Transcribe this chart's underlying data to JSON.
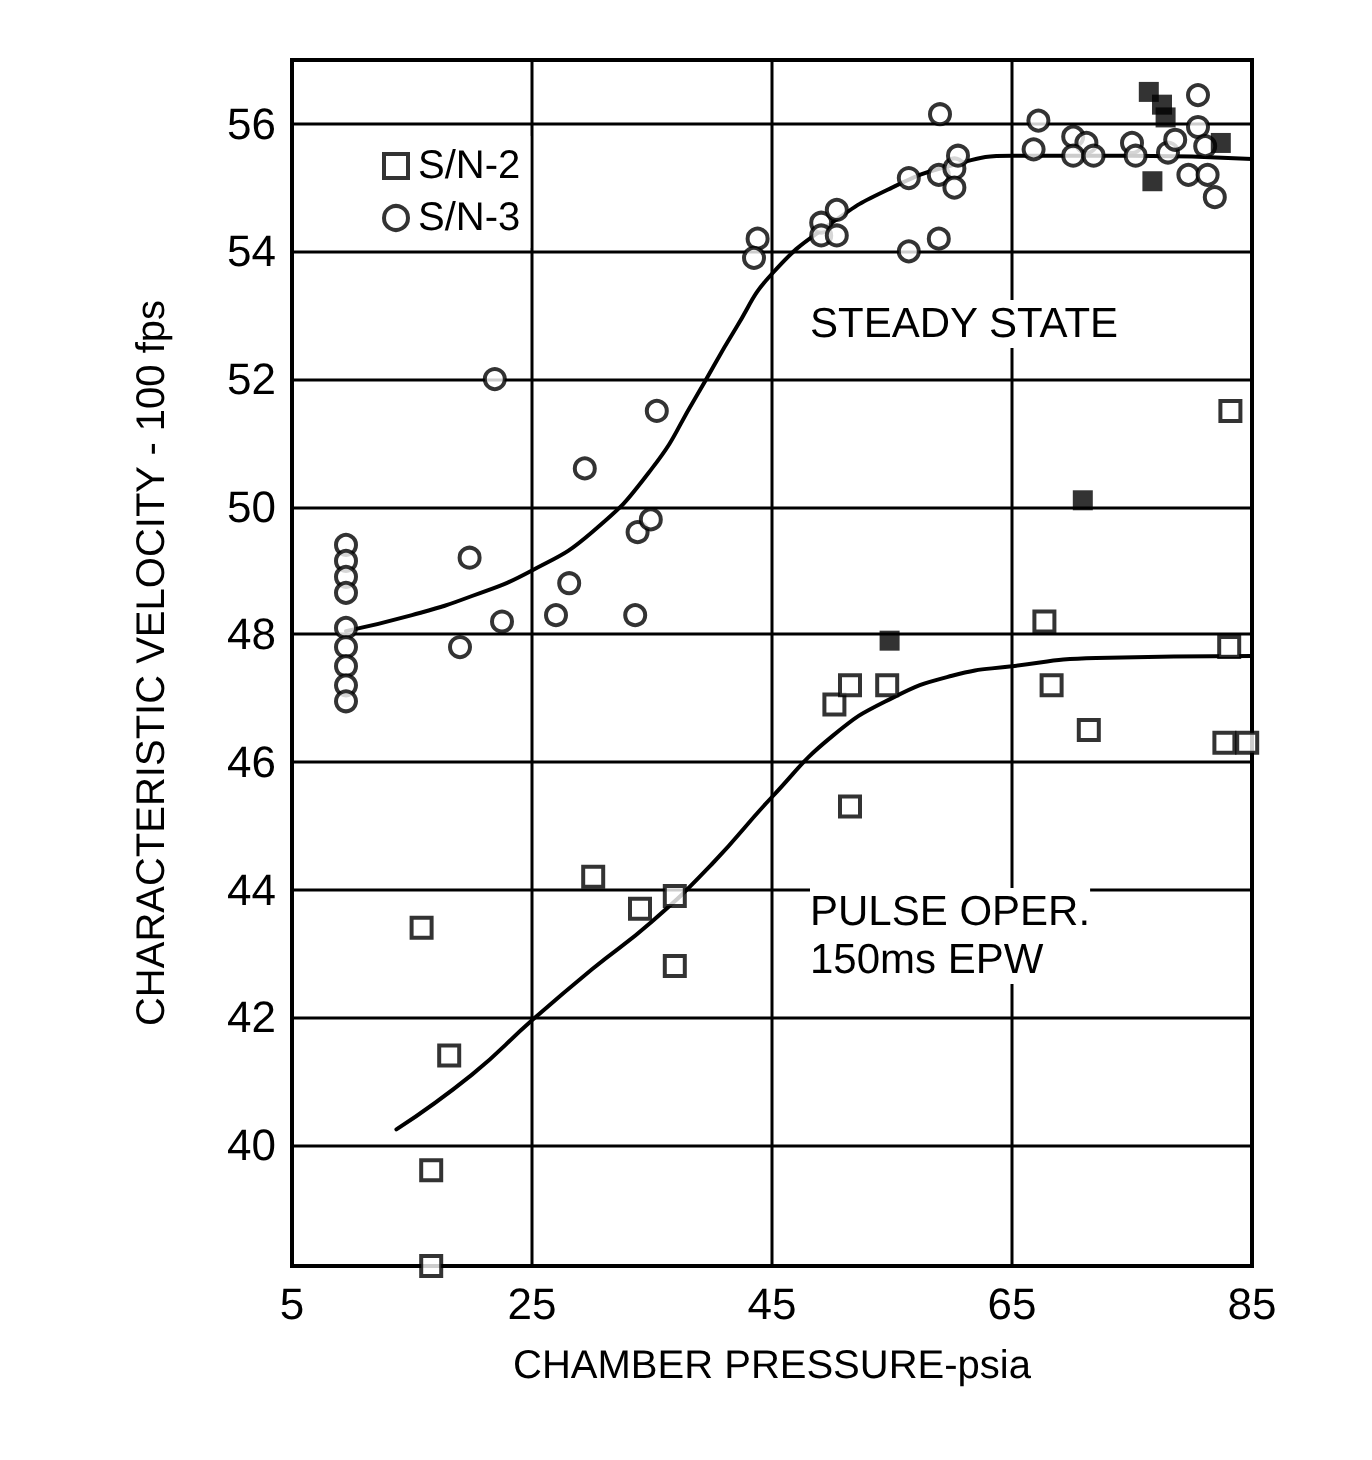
{
  "chart_data": {
    "type": "scatter",
    "xlabel": "CHAMBER PRESSURE-psia",
    "ylabel": "CHARACTERISTIC VELOCITY - 100 fps",
    "xlim": [
      5,
      85
    ],
    "xticks": [
      5,
      25,
      45,
      65,
      85
    ],
    "ylim": [
      38.1,
      57
    ],
    "yticks": [
      40,
      42,
      44,
      46,
      48,
      50,
      52,
      54,
      56
    ],
    "grid": true,
    "legend": "top left",
    "series": [
      {
        "name": "S/N-2",
        "marker": "square",
        "color": "#000000",
        "x": [
          83.2,
          67.7,
          83.1,
          50.2,
          51.5,
          54.6,
          68.3,
          71.4,
          82.7,
          84.6,
          51.5,
          30.1,
          34.0,
          36.9,
          36.9,
          15.8,
          18.1,
          16.6,
          16.6
        ],
        "values": [
          51.5,
          48.2,
          47.8,
          46.9,
          47.2,
          47.2,
          47.2,
          46.5,
          46.3,
          46.3,
          45.3,
          44.2,
          43.7,
          43.9,
          42.8,
          43.4,
          41.4,
          39.6,
          38.1
        ]
      },
      {
        "name": "S/N-3",
        "marker": "circle",
        "color": "#000000",
        "x": [
          9.5,
          9.5,
          9.5,
          9.5,
          9.5,
          9.5,
          9.5,
          9.5,
          9.5,
          19.8,
          19.0,
          22.5,
          21.9,
          27.0,
          28.1,
          29.4,
          33.6,
          33.8,
          34.9,
          35.4,
          43.8,
          43.5,
          49.1,
          50.4,
          49.1,
          50.4,
          56.4,
          58.9,
          56.4,
          58.9,
          60.2,
          60.5,
          60.2,
          59.0,
          67.2,
          66.8,
          70.1,
          71.2,
          70.1,
          71.8,
          75.0,
          75.3,
          78.0,
          78.6,
          80.5,
          80.5,
          81.1,
          79.7,
          81.3,
          81.9
        ],
        "values": [
          49.4,
          49.15,
          48.9,
          48.65,
          48.1,
          47.8,
          47.5,
          47.2,
          46.95,
          49.2,
          47.8,
          48.2,
          52.0,
          48.3,
          48.8,
          50.6,
          48.3,
          49.6,
          49.8,
          51.5,
          54.2,
          53.9,
          54.45,
          54.65,
          54.25,
          54.25,
          54.0,
          54.2,
          55.15,
          55.2,
          55.3,
          55.5,
          55.0,
          56.15,
          56.05,
          55.6,
          55.8,
          55.7,
          55.5,
          55.5,
          55.7,
          55.5,
          55.55,
          55.75,
          56.45,
          55.95,
          55.65,
          55.2,
          55.2,
          54.85
        ]
      },
      {
        "marker": "square",
        "color": "#000000",
        "x": [
          76.4,
          77.5,
          77.8,
          82.4,
          76.7,
          70.9,
          54.8
        ],
        "values": [
          56.5,
          56.3,
          56.1,
          55.7,
          55.1,
          50.1,
          47.9
        ]
      },
      {
        "type": "line",
        "marker": "none",
        "line_style": "solid",
        "color": "#000000",
        "x": [
          9.5,
          15,
          20,
          25,
          30,
          35,
          38.6,
          42,
          45,
          50,
          55,
          60,
          65,
          75,
          85
        ],
        "values": [
          48.05,
          48.3,
          48.6,
          49.0,
          49.6,
          50.6,
          51.7,
          52.8,
          53.65,
          54.45,
          55.0,
          55.35,
          55.5,
          55.5,
          55.45
        ]
      },
      {
        "type": "line",
        "marker": "none",
        "line_style": "solid",
        "color": "#000000",
        "x": [
          13.7,
          20,
          25,
          30,
          35,
          40,
          45,
          50,
          55,
          60,
          65,
          72,
          85
        ],
        "values": [
          40.24,
          41.1,
          41.95,
          42.75,
          43.5,
          44.4,
          45.45,
          46.4,
          47.0,
          47.35,
          47.5,
          47.63,
          47.66
        ]
      }
    ],
    "annotations": [
      "STEADY STATE",
      "PULSE OPER.\n150ms EPW"
    ]
  }
}
